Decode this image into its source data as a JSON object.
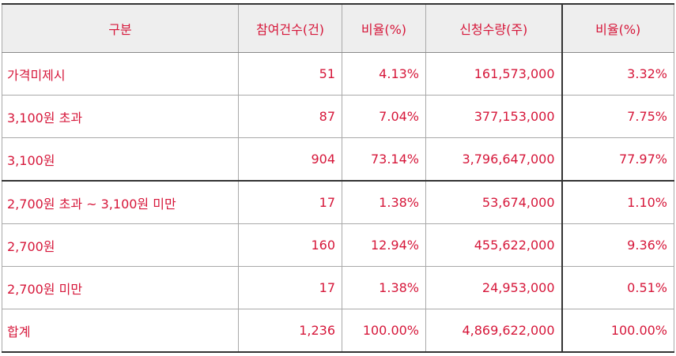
{
  "table": {
    "headers": [
      "구분",
      "참여건수(건)",
      "비율(%)",
      "신청수량(주)",
      "비율(%)"
    ],
    "rows": [
      {
        "label": "가격미제시",
        "count": "51",
        "count_ratio": "4.13%",
        "quantity": "161,573,000",
        "quantity_ratio": "3.32%"
      },
      {
        "label": "3,100원 초과",
        "count": "87",
        "count_ratio": "7.04%",
        "quantity": "377,153,000",
        "quantity_ratio": "7.75%"
      },
      {
        "label": "3,100원",
        "count": "904",
        "count_ratio": "73.14%",
        "quantity": "3,796,647,000",
        "quantity_ratio": "77.97%"
      },
      {
        "label": "2,700원 초과 ~ 3,100원 미만",
        "count": "17",
        "count_ratio": "1.38%",
        "quantity": "53,674,000",
        "quantity_ratio": "1.10%"
      },
      {
        "label": "2,700원",
        "count": "160",
        "count_ratio": "12.94%",
        "quantity": "455,622,000",
        "quantity_ratio": "9.36%"
      },
      {
        "label": "2,700원 미만",
        "count": "17",
        "count_ratio": "1.38%",
        "quantity": "24,953,000",
        "quantity_ratio": "0.51%"
      },
      {
        "label": "합계",
        "count": "1,236",
        "count_ratio": "100.00%",
        "quantity": "4,869,622,000",
        "quantity_ratio": "100.00%"
      }
    ]
  },
  "colors": {
    "text": "#d6173a",
    "header_bg": "#eeeeee",
    "border": "#a9a9a9",
    "thick_border": "#333333"
  }
}
